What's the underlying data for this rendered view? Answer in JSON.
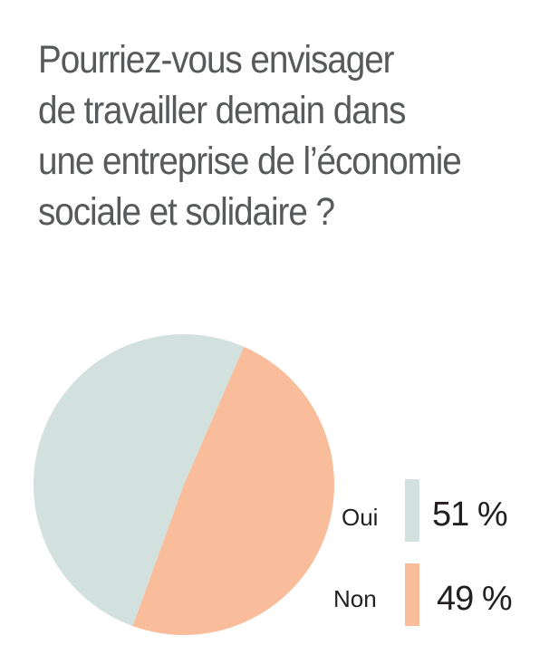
{
  "chart_data": {
    "type": "pie",
    "title_lines": [
      "Pourriez-vous envisager",
      "de travailler demain dans",
      "une entreprise de l’économie",
      "sociale et solidaire ?"
    ],
    "slices": [
      {
        "label": "Oui",
        "value": 51,
        "display": "51 %",
        "color": "#d3e1de"
      },
      {
        "label": "Non",
        "value": 49,
        "display": "49 %",
        "color": "#f9bd9c"
      }
    ],
    "legend_position": "bottom-right"
  }
}
